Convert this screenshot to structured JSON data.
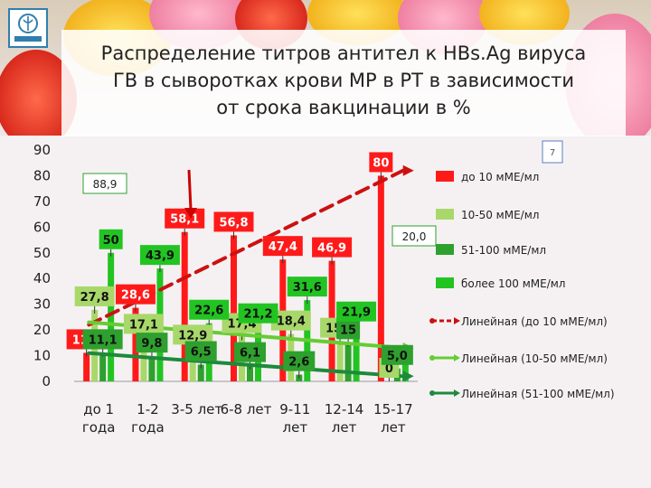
{
  "title": "Распределение титров антител к HBs.Ag вируса\nГВ в сыворотках крови МР в РТ в зависимости\nот срока вакцинации  в %",
  "colors": {
    "s1": "#ff1a1a",
    "s2": "#a8d86a",
    "s3": "#2ea02e",
    "s4": "#22c422",
    "trend1": "#cc1111",
    "trend2": "#66cc33",
    "trend3": "#1d8a3a"
  },
  "chart_data": {
    "type": "bar",
    "categories": [
      "до 1\nгода",
      "1-2\nгода",
      "3-5 лет",
      "6-8 лет",
      "9-11\nлет",
      "12-14\nлет",
      "15-17\nлет"
    ],
    "ylim": [
      0,
      90
    ],
    "yticks": [
      0,
      10,
      20,
      30,
      40,
      50,
      60,
      70,
      80,
      90
    ],
    "series": [
      {
        "name": "до 10 мМЕ/мл",
        "values": [
          11.1,
          28.6,
          58.1,
          56.8,
          47.4,
          46.9,
          80
        ],
        "labels": [
          "11,1",
          "28,6",
          "58,1",
          "56,8",
          "47,4",
          "46,9",
          "80"
        ]
      },
      {
        "name": "10-50 мМЕ/мл",
        "values": [
          27.8,
          17.1,
          12.9,
          17.4,
          18.4,
          15.6,
          0
        ],
        "labels": [
          "27,8",
          "17,1",
          "12,9",
          "17,4",
          "18,4",
          "15,6",
          "0"
        ]
      },
      {
        "name": "51-100 мМЕ/мл",
        "values": [
          11.1,
          9.8,
          6.5,
          6.1,
          2.6,
          15,
          5.0
        ],
        "labels": [
          "11,1",
          "9,8",
          "6,5",
          "6,1",
          "2,6",
          "15",
          "5,0"
        ]
      },
      {
        "name": "более 100 мМЕ/мл",
        "values": [
          50,
          43.9,
          22.6,
          21.2,
          31.6,
          21.9,
          10
        ],
        "labels": [
          "50",
          "43,9",
          "22,6",
          "21,2",
          "31,6",
          "21,9",
          ""
        ]
      }
    ],
    "trends": [
      {
        "name": "Линейная (до 10 мМЕ/мл)",
        "from": 22,
        "to": 82
      },
      {
        "name": "Линейная (10-50 мМЕ/мл)",
        "from": 23,
        "to": 13
      },
      {
        "name": "Линейная (51-100 мМЕ/мл)",
        "from": 11,
        "to": 2
      }
    ],
    "annotations": [
      "88,9",
      "20,0",
      "7"
    ],
    "grid": false,
    "legend_position": "right"
  }
}
